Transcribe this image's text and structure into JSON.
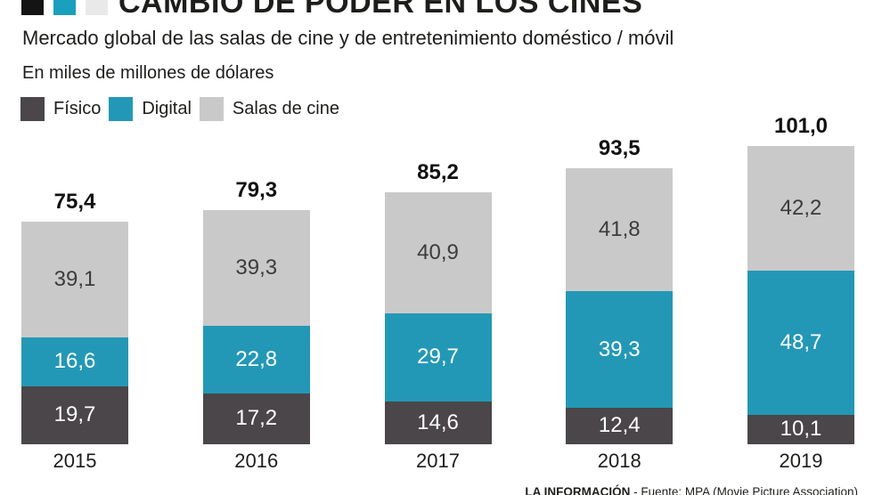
{
  "header": {
    "brand_squares": [
      {
        "name": "black",
        "color": "#141414"
      },
      {
        "name": "teal",
        "color": "#1aa0be"
      },
      {
        "name": "light-gray",
        "color": "#e9e9e9"
      }
    ],
    "title": "CAMBIO DE PODER EN LOS CINES",
    "subtitle": "Mercado global de las salas de cine y de entretenimiento doméstico / móvil",
    "units": "En miles de millones de dólares"
  },
  "legend": [
    {
      "label": "Físico",
      "color": "#4a4649"
    },
    {
      "label": "Digital",
      "color": "#2398b6"
    },
    {
      "label": "Salas de cine",
      "color": "#c9c9c9"
    }
  ],
  "chart_data": {
    "type": "bar",
    "stacked": true,
    "title": "CAMBIO DE PODER EN LOS CINES",
    "subtitle": "Mercado global de las salas de cine y de entretenimiento doméstico / móvil",
    "ylabel": "En miles de millones de dólares",
    "categories": [
      "2015",
      "2016",
      "2017",
      "2018",
      "2019"
    ],
    "series": [
      {
        "key": "fisico",
        "name": "Físico",
        "color": "#4a4649",
        "label_color": "#ffffff",
        "values": [
          19.7,
          17.2,
          14.6,
          12.4,
          10.1
        ],
        "labels": [
          "19,7",
          "17,2",
          "14,6",
          "12,4",
          "10,1"
        ]
      },
      {
        "key": "digital",
        "name": "Digital",
        "color": "#2398b6",
        "label_color": "#ffffff",
        "values": [
          16.6,
          22.8,
          29.7,
          39.3,
          48.7
        ],
        "labels": [
          "16,6",
          "22,8",
          "29,7",
          "39,3",
          "48,7"
        ]
      },
      {
        "key": "salas-de-cine",
        "name": "Salas de cine",
        "color": "#c9c9c9",
        "label_color": "#3c3c3c",
        "values": [
          39.1,
          39.3,
          40.9,
          41.8,
          42.2
        ],
        "labels": [
          "39,1",
          "39,3",
          "40,9",
          "41,8",
          "42,2"
        ]
      }
    ],
    "totals": [
      75.4,
      79.3,
      85.2,
      93.5,
      101.0
    ],
    "total_labels": [
      "75,4",
      "79,3",
      "85,2",
      "93,5",
      "101,0"
    ],
    "ylim": [
      0,
      101
    ],
    "grid": false,
    "legend_position": "top-left",
    "value_labels_shown": true
  },
  "footer": {
    "brand": "LA INFORMACIÓN",
    "source": " - Fuente: MPA (Movie Picture Association)"
  }
}
